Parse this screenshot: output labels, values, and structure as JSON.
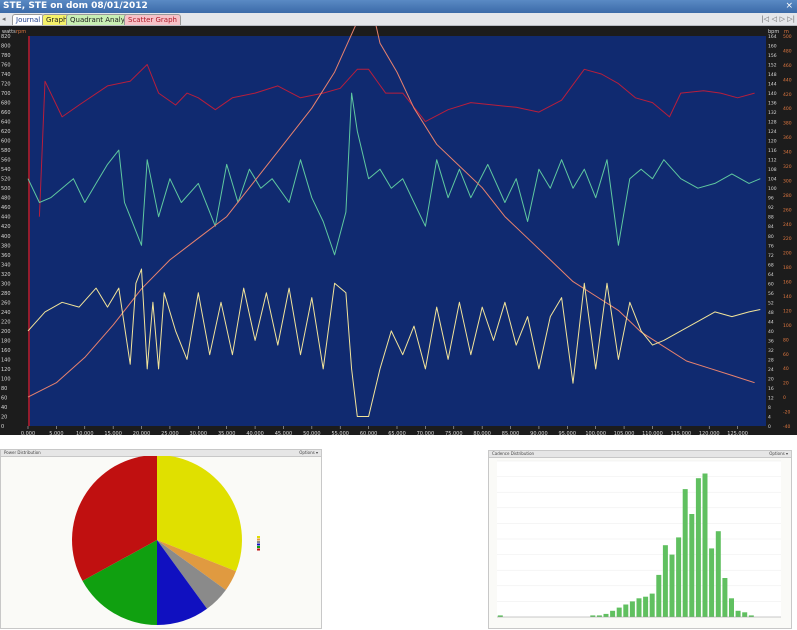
{
  "window": {
    "title": "STE, STE on dom 08/01/2012",
    "close": "×"
  },
  "tabs": [
    {
      "label": "Journal",
      "bg": "#ffffff",
      "color": "#1f3f8f"
    },
    {
      "label": "Graph",
      "bg": "#f6f26a",
      "color": "#222222"
    },
    {
      "label": "Quadrant Analysis",
      "bg": "#c9efb4",
      "color": "#222222"
    },
    {
      "label": "Scatter Graph",
      "bg": "#f6c2c8",
      "color": "#b01a2a"
    }
  ],
  "nav": {
    "first": "|◁",
    "prev": "◁",
    "next": "▷",
    "last": "▷|"
  },
  "chart_data": [
    {
      "type": "line",
      "axis_titles": {
        "left": [
          "watts",
          "rpm"
        ],
        "right": [
          "bpm",
          "m"
        ]
      },
      "x": {
        "ticks": [
          0,
          5000,
          10000,
          15000,
          20000,
          25000,
          30000,
          35000,
          40000,
          45000,
          50000,
          55000,
          60000,
          65000,
          70000,
          75000,
          80000,
          85000,
          90000,
          95000,
          100000,
          105000,
          110000,
          115000,
          120000,
          125000
        ],
        "range": [
          0,
          130000
        ]
      },
      "y_left": {
        "range": [
          0,
          820
        ],
        "step": 20
      },
      "y_right_bpm": {
        "range": [
          0,
          164
        ],
        "step": 4
      },
      "y_right_m": {
        "range": [
          -40,
          500
        ],
        "step": 20
      },
      "background": "#102a70",
      "series": [
        {
          "axis": "bpm",
          "color": "#b81e3c",
          "points": [
            [
              2000,
              88
            ],
            [
              3000,
              145
            ],
            [
              6000,
              130
            ],
            [
              9000,
              135
            ],
            [
              14000,
              143
            ],
            [
              18000,
              145
            ],
            [
              21000,
              152
            ],
            [
              23000,
              140
            ],
            [
              26000,
              135
            ],
            [
              28000,
              140
            ],
            [
              30000,
              138
            ],
            [
              33000,
              133
            ],
            [
              36000,
              138
            ],
            [
              40000,
              140
            ],
            [
              44000,
              143
            ],
            [
              48000,
              138
            ],
            [
              52000,
              140
            ],
            [
              55000,
              142
            ],
            [
              58000,
              150
            ],
            [
              60000,
              150
            ],
            [
              63000,
              140
            ],
            [
              66000,
              140
            ],
            [
              70000,
              128
            ],
            [
              74000,
              133
            ],
            [
              78000,
              136
            ],
            [
              82000,
              135
            ],
            [
              86000,
              134
            ],
            [
              90000,
              132
            ],
            [
              94000,
              137
            ],
            [
              98000,
              150
            ],
            [
              101000,
              148
            ],
            [
              104000,
              144
            ],
            [
              107000,
              138
            ],
            [
              110000,
              136
            ],
            [
              113000,
              130
            ],
            [
              115000,
              140
            ],
            [
              119000,
              141
            ],
            [
              122000,
              140
            ],
            [
              125000,
              138
            ],
            [
              128000,
              140
            ]
          ]
        },
        {
          "axis": "rpm",
          "color": "#5fc8a0",
          "points": [
            [
              0,
              520
            ],
            [
              2000,
              470
            ],
            [
              4000,
              480
            ],
            [
              6000,
              500
            ],
            [
              8000,
              520
            ],
            [
              10000,
              470
            ],
            [
              12000,
              510
            ],
            [
              14000,
              550
            ],
            [
              16000,
              580
            ],
            [
              17000,
              470
            ],
            [
              18000,
              440
            ],
            [
              20000,
              380
            ],
            [
              21000,
              560
            ],
            [
              23000,
              440
            ],
            [
              25000,
              520
            ],
            [
              27000,
              470
            ],
            [
              30000,
              510
            ],
            [
              33000,
              420
            ],
            [
              35000,
              550
            ],
            [
              37000,
              470
            ],
            [
              39000,
              540
            ],
            [
              41000,
              500
            ],
            [
              43000,
              520
            ],
            [
              46000,
              470
            ],
            [
              48000,
              560
            ],
            [
              50000,
              480
            ],
            [
              52000,
              430
            ],
            [
              54000,
              360
            ],
            [
              56000,
              450
            ],
            [
              57000,
              700
            ],
            [
              58000,
              620
            ],
            [
              60000,
              520
            ],
            [
              62000,
              540
            ],
            [
              64000,
              500
            ],
            [
              66000,
              520
            ],
            [
              68000,
              470
            ],
            [
              70000,
              420
            ],
            [
              72000,
              560
            ],
            [
              74000,
              480
            ],
            [
              76000,
              540
            ],
            [
              78000,
              480
            ],
            [
              81000,
              550
            ],
            [
              84000,
              470
            ],
            [
              86000,
              520
            ],
            [
              88000,
              430
            ],
            [
              90000,
              540
            ],
            [
              92000,
              500
            ],
            [
              94000,
              560
            ],
            [
              96000,
              500
            ],
            [
              98000,
              540
            ],
            [
              100000,
              480
            ],
            [
              102000,
              560
            ],
            [
              104000,
              380
            ],
            [
              106000,
              520
            ],
            [
              108000,
              540
            ],
            [
              110000,
              520
            ],
            [
              112000,
              560
            ],
            [
              115000,
              520
            ],
            [
              118000,
              500
            ],
            [
              121000,
              510
            ],
            [
              124000,
              530
            ],
            [
              127000,
              510
            ],
            [
              129000,
              520
            ]
          ]
        },
        {
          "axis": "m",
          "color": "#e8826e",
          "points": [
            [
              0,
              0
            ],
            [
              5000,
              20
            ],
            [
              10000,
              55
            ],
            [
              15000,
              100
            ],
            [
              20000,
              150
            ],
            [
              25000,
              190
            ],
            [
              30000,
              220
            ],
            [
              35000,
              250
            ],
            [
              40000,
              300
            ],
            [
              45000,
              350
            ],
            [
              50000,
              400
            ],
            [
              54000,
              450
            ],
            [
              58000,
              520
            ],
            [
              60000,
              560
            ],
            [
              62000,
              490
            ],
            [
              65000,
              450
            ],
            [
              68000,
              400
            ],
            [
              72000,
              350
            ],
            [
              76000,
              320
            ],
            [
              80000,
              290
            ],
            [
              84000,
              250
            ],
            [
              88000,
              220
            ],
            [
              92000,
              190
            ],
            [
              96000,
              160
            ],
            [
              100000,
              140
            ],
            [
              104000,
              120
            ],
            [
              108000,
              90
            ],
            [
              112000,
              70
            ],
            [
              116000,
              50
            ],
            [
              120000,
              40
            ],
            [
              124000,
              30
            ],
            [
              128000,
              20
            ]
          ]
        },
        {
          "axis": "watts",
          "color": "#f2e49a",
          "points": [
            [
              0,
              200
            ],
            [
              3000,
              240
            ],
            [
              6000,
              260
            ],
            [
              9000,
              250
            ],
            [
              12000,
              290
            ],
            [
              14000,
              250
            ],
            [
              16000,
              290
            ],
            [
              18000,
              130
            ],
            [
              19000,
              300
            ],
            [
              20000,
              330
            ],
            [
              21000,
              120
            ],
            [
              22000,
              260
            ],
            [
              23000,
              120
            ],
            [
              24000,
              280
            ],
            [
              26000,
              200
            ],
            [
              28000,
              140
            ],
            [
              30000,
              280
            ],
            [
              32000,
              150
            ],
            [
              34000,
              260
            ],
            [
              36000,
              150
            ],
            [
              38000,
              290
            ],
            [
              40000,
              180
            ],
            [
              42000,
              280
            ],
            [
              44000,
              170
            ],
            [
              46000,
              290
            ],
            [
              48000,
              150
            ],
            [
              50000,
              270
            ],
            [
              52000,
              120
            ],
            [
              54000,
              300
            ],
            [
              56000,
              280
            ],
            [
              57000,
              120
            ],
            [
              58000,
              20
            ],
            [
              60000,
              20
            ],
            [
              62000,
              120
            ],
            [
              64000,
              200
            ],
            [
              66000,
              150
            ],
            [
              68000,
              210
            ],
            [
              70000,
              120
            ],
            [
              72000,
              250
            ],
            [
              74000,
              140
            ],
            [
              76000,
              260
            ],
            [
              78000,
              150
            ],
            [
              80000,
              250
            ],
            [
              82000,
              180
            ],
            [
              84000,
              260
            ],
            [
              86000,
              170
            ],
            [
              88000,
              230
            ],
            [
              90000,
              120
            ],
            [
              92000,
              230
            ],
            [
              94000,
              270
            ],
            [
              96000,
              90
            ],
            [
              98000,
              300
            ],
            [
              100000,
              120
            ],
            [
              102000,
              300
            ],
            [
              104000,
              140
            ],
            [
              106000,
              260
            ],
            [
              108000,
              200
            ],
            [
              110000,
              170
            ],
            [
              112000,
              180
            ],
            [
              115000,
              200
            ],
            [
              118000,
              220
            ],
            [
              121000,
              240
            ],
            [
              124000,
              230
            ],
            [
              127000,
              240
            ],
            [
              129000,
              245
            ]
          ]
        }
      ]
    },
    {
      "type": "pie",
      "title": "Power Distribution",
      "options_label": "Options ▾",
      "slices": [
        {
          "value": 31,
          "color": "#e0e000"
        },
        {
          "value": 4,
          "color": "#e09a40"
        },
        {
          "value": 5,
          "color": "#8a8a8a"
        },
        {
          "value": 10,
          "color": "#1010c0"
        },
        {
          "value": 17,
          "color": "#10a010"
        },
        {
          "value": 33,
          "color": "#c01010"
        }
      ]
    },
    {
      "type": "bar",
      "title": "Cadence Distribution",
      "options_label": "Options ▾",
      "color": "#60c060",
      "ylim": [
        0,
        100
      ],
      "values": [
        1,
        0,
        0,
        0,
        0,
        0,
        0,
        0,
        0,
        0,
        0,
        0,
        0,
        0,
        1,
        1,
        2,
        4,
        6,
        8,
        10,
        12,
        13,
        15,
        27,
        46,
        40,
        51,
        82,
        66,
        89,
        92,
        44,
        55,
        25,
        12,
        4,
        3,
        1,
        0,
        0,
        0,
        0
      ]
    }
  ]
}
